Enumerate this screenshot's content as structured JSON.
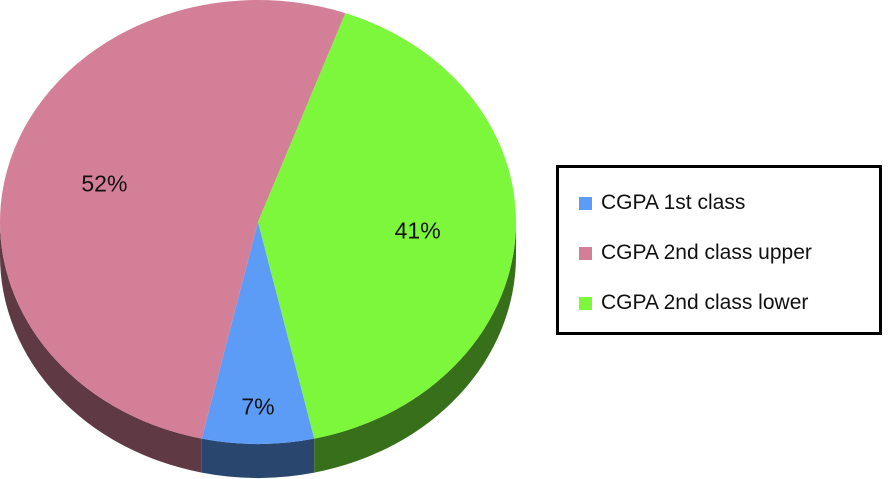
{
  "chart_data": {
    "type": "pie",
    "title": "",
    "slices": [
      {
        "name": "CGPA 1st class",
        "value": 7,
        "label": "7%",
        "color": "#5c9cf7"
      },
      {
        "name": "CGPA 2nd class upper",
        "value": 52,
        "label": "52%",
        "color": "#d47f98"
      },
      {
        "name": "CGPA 2nd class lower",
        "value": 41,
        "label": "41%",
        "color": "#7cf73c"
      }
    ],
    "legend": {
      "placement": "right",
      "entries": [
        "CGPA 1st class",
        "CGPA 2nd class upper",
        "CGPA 2nd class lower"
      ]
    },
    "style": "3d-tilted"
  }
}
